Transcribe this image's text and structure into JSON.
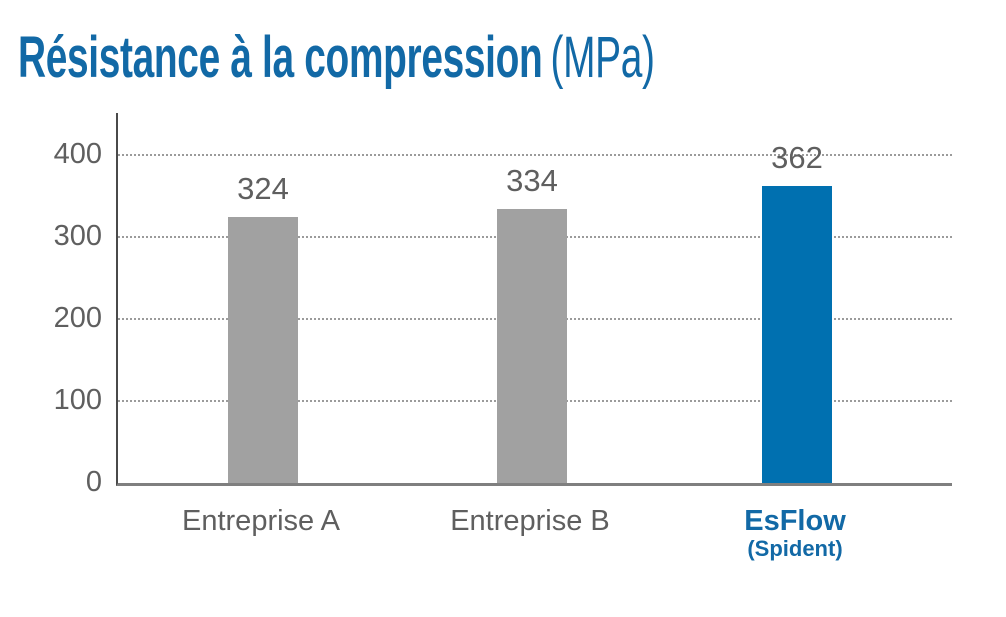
{
  "title": {
    "main": "Résistance à la compression",
    "unit": "(MPa)"
  },
  "chart_data": {
    "type": "bar",
    "title": "Résistance à la compression (MPa)",
    "categories": [
      "Entreprise A",
      "Entreprise B",
      "EsFlow"
    ],
    "category_sublabels": [
      "",
      "",
      "(Spident)"
    ],
    "values": [
      324,
      334,
      362
    ],
    "value_labels": [
      "324",
      "334",
      "362"
    ],
    "bar_colors": [
      "#a1a1a1",
      "#a1a1a1",
      "#0070b0"
    ],
    "category_label_colors": [
      "#5f5f5f",
      "#5f5f5f",
      "#1269a6"
    ],
    "category_label_bold": [
      false,
      false,
      true
    ],
    "ylim": [
      0,
      450
    ],
    "yticks": [
      0,
      100,
      200,
      300,
      400
    ],
    "grid": "horizontal-dotted",
    "legend": "none",
    "xlabel": "",
    "ylabel": ""
  },
  "colors": {
    "title_blue": "#1269a6",
    "bar_blue": "#0070b0",
    "bar_gray": "#a1a1a1",
    "text_gray": "#5f5f5f",
    "axis_line": "#4a4a4a",
    "baseline": "#7f7f7f",
    "gridline": "#9b9b9b",
    "background": "#ffffff"
  }
}
